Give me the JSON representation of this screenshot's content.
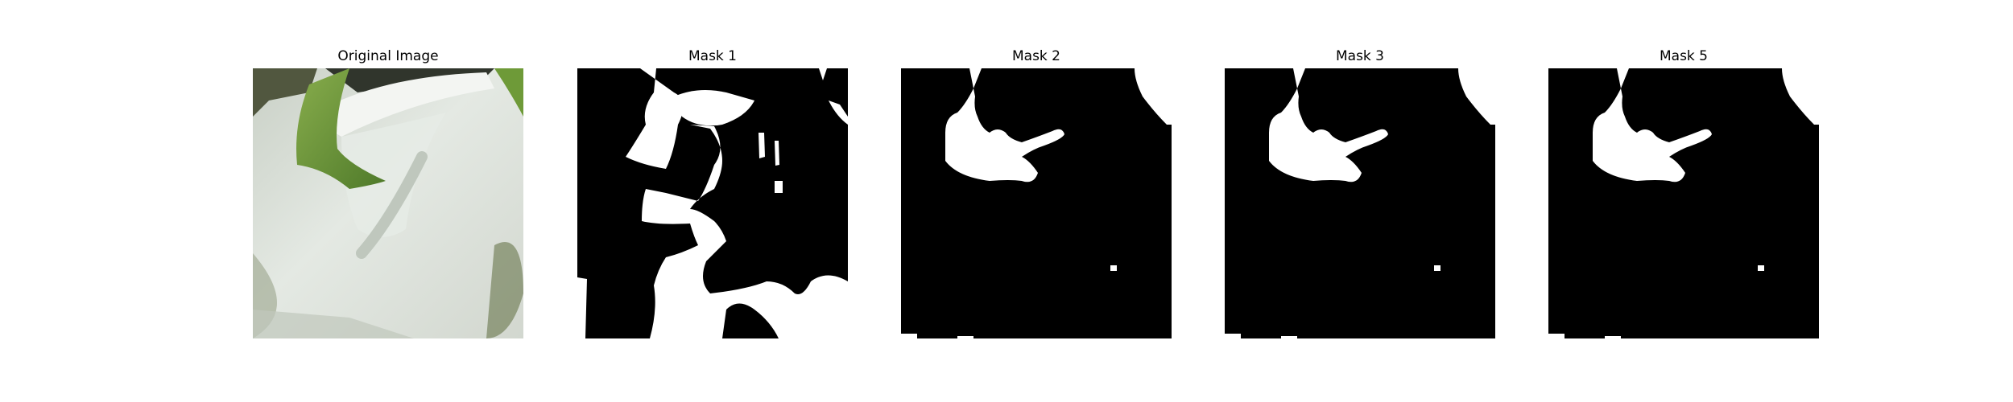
{
  "panels": [
    {
      "title": "Original Image",
      "kind": "photo"
    },
    {
      "title": "Mask 1",
      "kind": "mask"
    },
    {
      "title": "Mask 2",
      "kind": "mask"
    },
    {
      "title": "Mask 3",
      "kind": "mask"
    },
    {
      "title": "Mask 5",
      "kind": "mask"
    }
  ],
  "colors": {
    "mask_background": "#000000",
    "mask_foreground": "#ffffff",
    "leaf_green": "#6f9a3b",
    "pot_white": "#e6ebe6"
  }
}
